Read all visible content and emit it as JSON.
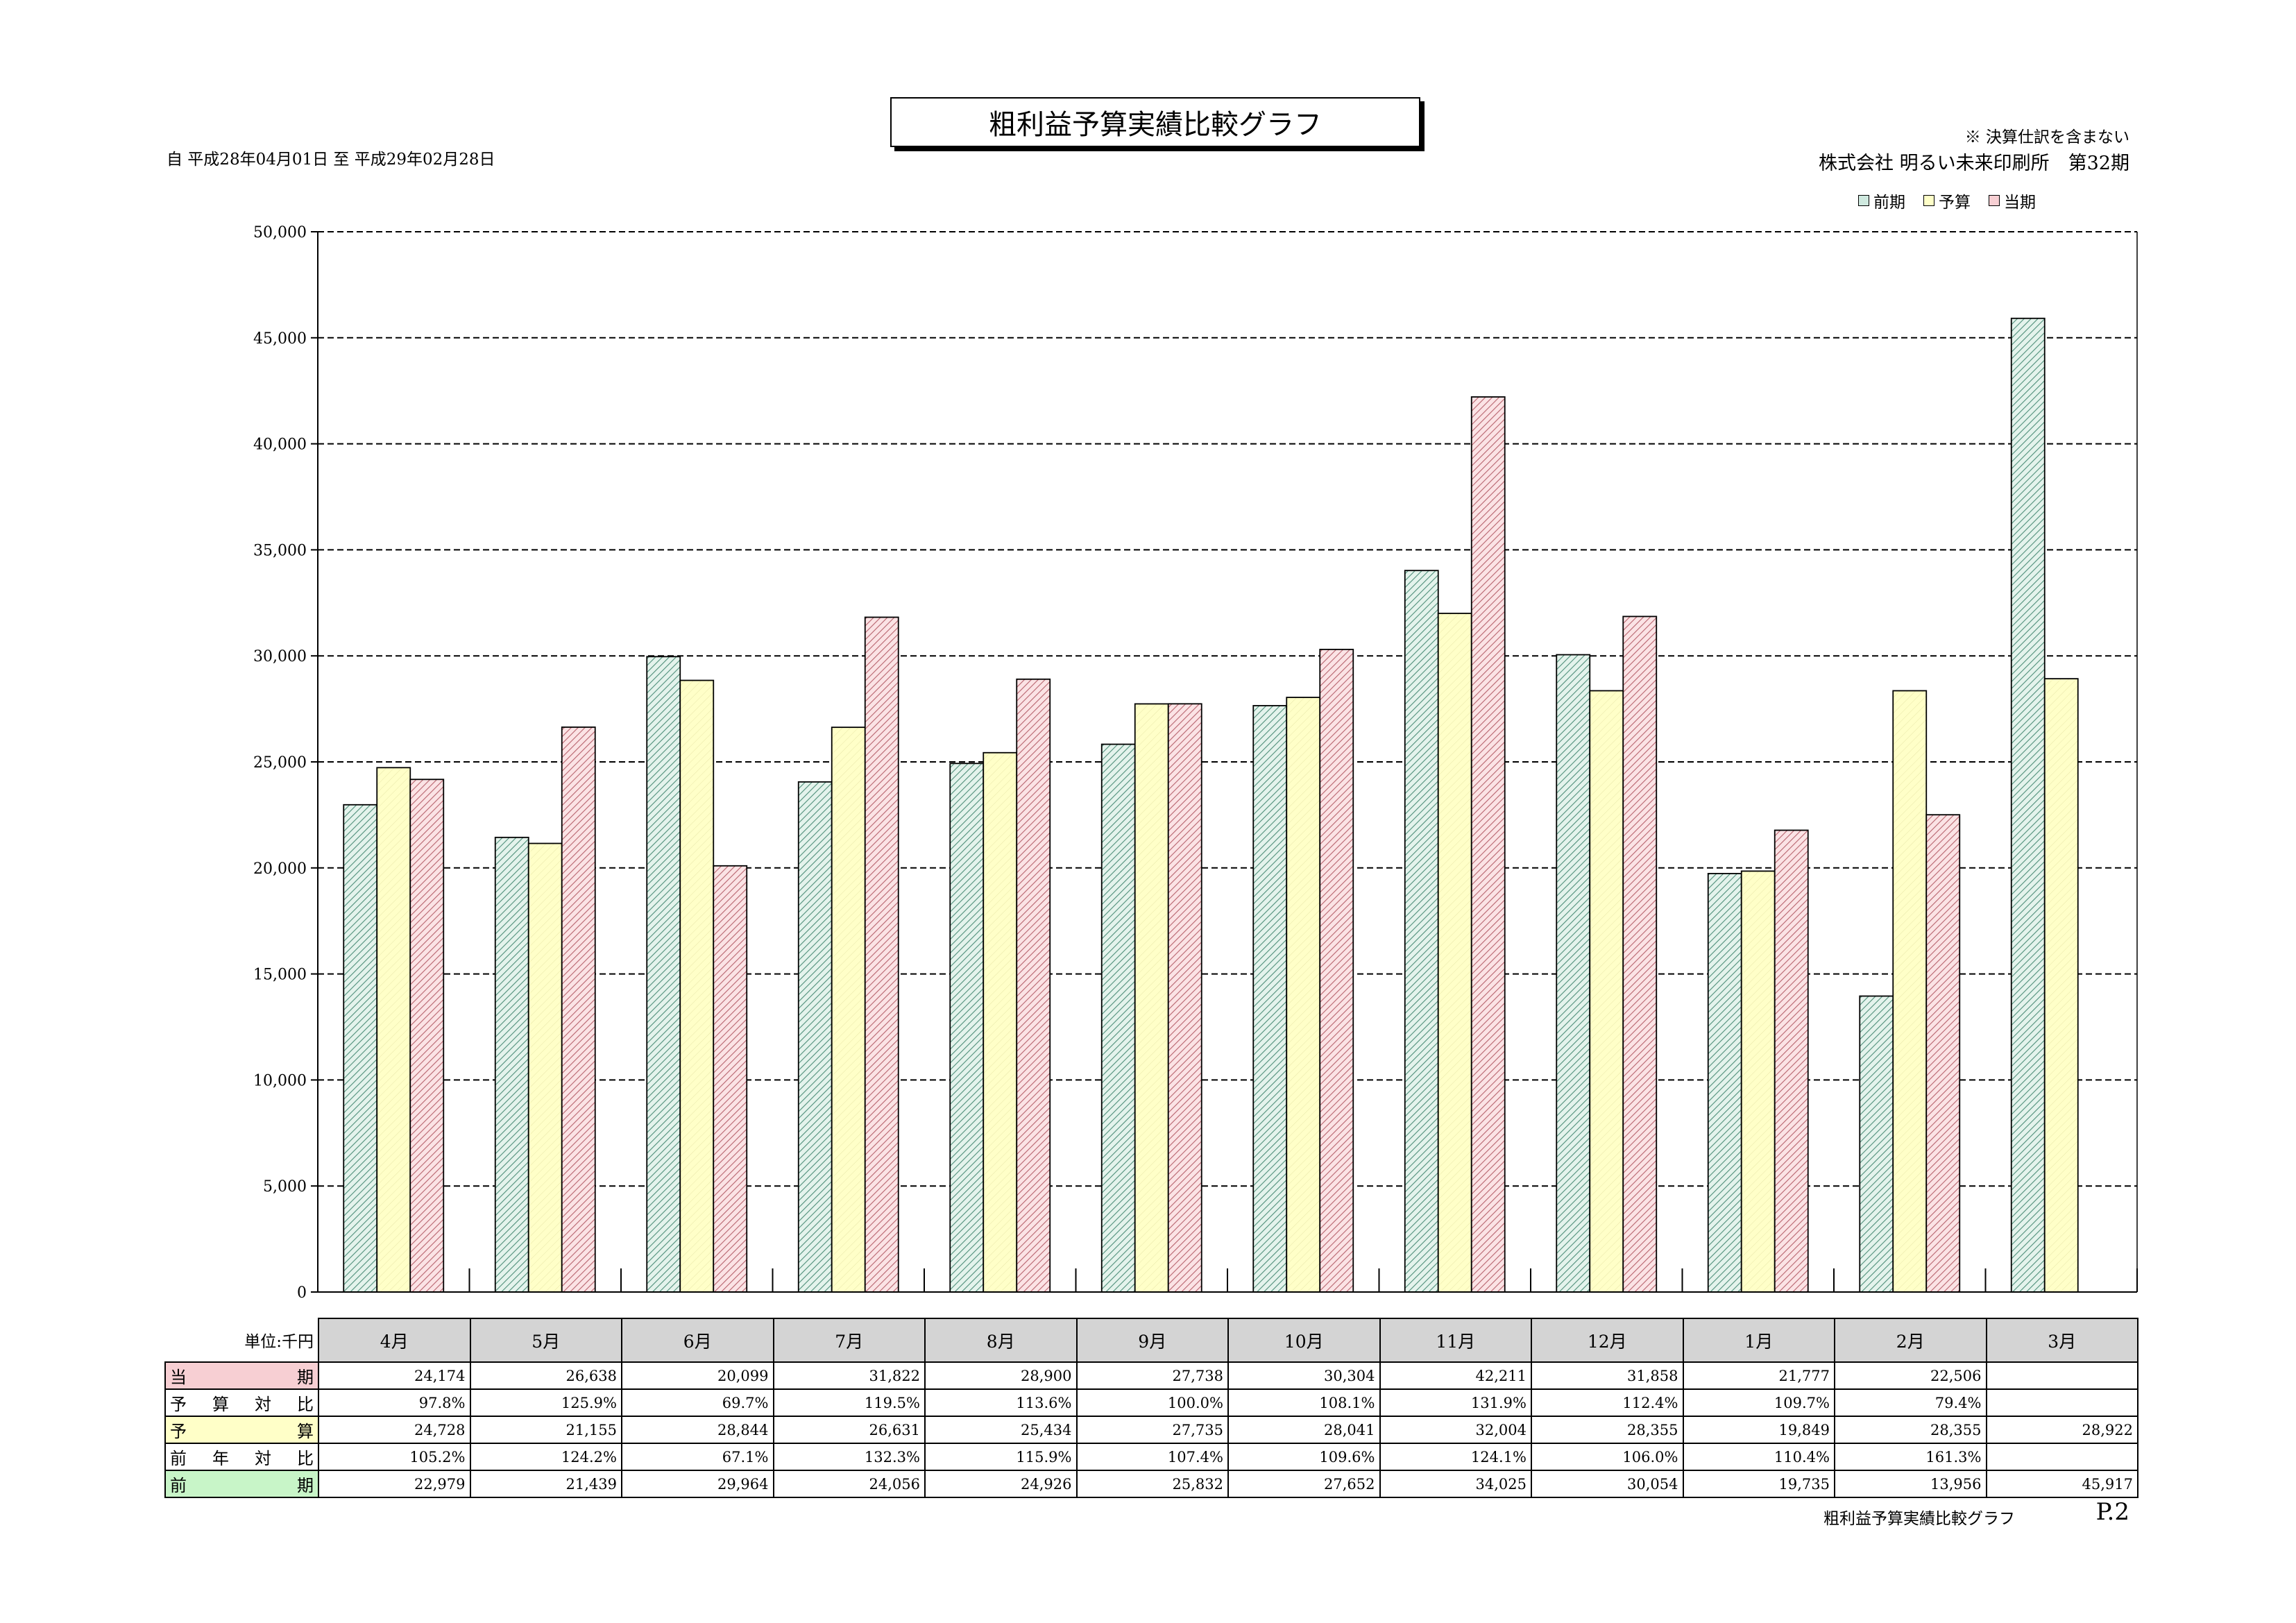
{
  "header": {
    "title": "粗利益予算実績比較グラフ",
    "period": "自 平成28年04月01日 至 平成29年02月28日",
    "note": "※ 決算仕訳を含まない",
    "company": "株式会社 明るい未来印刷所　第32期"
  },
  "legend": [
    {
      "label": "前期",
      "color": "#cfe9df"
    },
    {
      "label": "予算",
      "color": "#ffffc8"
    },
    {
      "label": "当期",
      "color": "#f7cfd3"
    }
  ],
  "chart_data": {
    "type": "bar",
    "categories": [
      "4月",
      "5月",
      "6月",
      "7月",
      "8月",
      "9月",
      "10月",
      "11月",
      "12月",
      "1月",
      "2月",
      "3月"
    ],
    "series": [
      {
        "name": "前期",
        "values": [
          22979,
          21439,
          29964,
          24056,
          24926,
          25832,
          27652,
          34025,
          30054,
          19735,
          13956,
          45917
        ]
      },
      {
        "name": "予算",
        "values": [
          24728,
          21155,
          28844,
          26631,
          25434,
          27735,
          28041,
          32004,
          28355,
          19849,
          28355,
          28922
        ]
      },
      {
        "name": "当期",
        "values": [
          24174,
          26638,
          20099,
          31822,
          28900,
          27738,
          30304,
          42211,
          31858,
          21777,
          22506,
          null
        ]
      }
    ],
    "ylim": [
      0,
      50000
    ],
    "yticks": [
      "0",
      "5,000",
      "10,000",
      "15,000",
      "20,000",
      "25,000",
      "30,000",
      "35,000",
      "40,000",
      "45,000",
      "50,000"
    ],
    "grid": true,
    "legend_position": "top-right"
  },
  "table": {
    "unit": "単位:千円",
    "rows": [
      {
        "label": "当期",
        "color": "#f7cfd3",
        "values": [
          "24,174",
          "26,638",
          "20,099",
          "31,822",
          "28,900",
          "27,738",
          "30,304",
          "42,211",
          "31,858",
          "21,777",
          "22,506",
          ""
        ]
      },
      {
        "label": "予算対比",
        "color": "#ffffff",
        "values": [
          "97.8%",
          "125.9%",
          "69.7%",
          "119.5%",
          "113.6%",
          "100.0%",
          "108.1%",
          "131.9%",
          "112.4%",
          "109.7%",
          "79.4%",
          ""
        ]
      },
      {
        "label": "予算",
        "color": "#ffffc8",
        "values": [
          "24,728",
          "21,155",
          "28,844",
          "26,631",
          "25,434",
          "27,735",
          "28,041",
          "32,004",
          "28,355",
          "19,849",
          "28,355",
          "28,922"
        ]
      },
      {
        "label": "前年対比",
        "color": "#ffffff",
        "values": [
          "105.2%",
          "124.2%",
          "67.1%",
          "132.3%",
          "115.9%",
          "107.4%",
          "109.6%",
          "124.1%",
          "106.0%",
          "110.4%",
          "161.3%",
          ""
        ]
      },
      {
        "label": "前期",
        "color": "#c8f5c8",
        "values": [
          "22,979",
          "21,439",
          "29,964",
          "24,056",
          "24,926",
          "25,832",
          "27,652",
          "34,025",
          "30,054",
          "19,735",
          "13,956",
          "45,917"
        ]
      }
    ]
  },
  "footer": {
    "title": "粗利益予算実績比較グラフ",
    "page": "P.2"
  }
}
